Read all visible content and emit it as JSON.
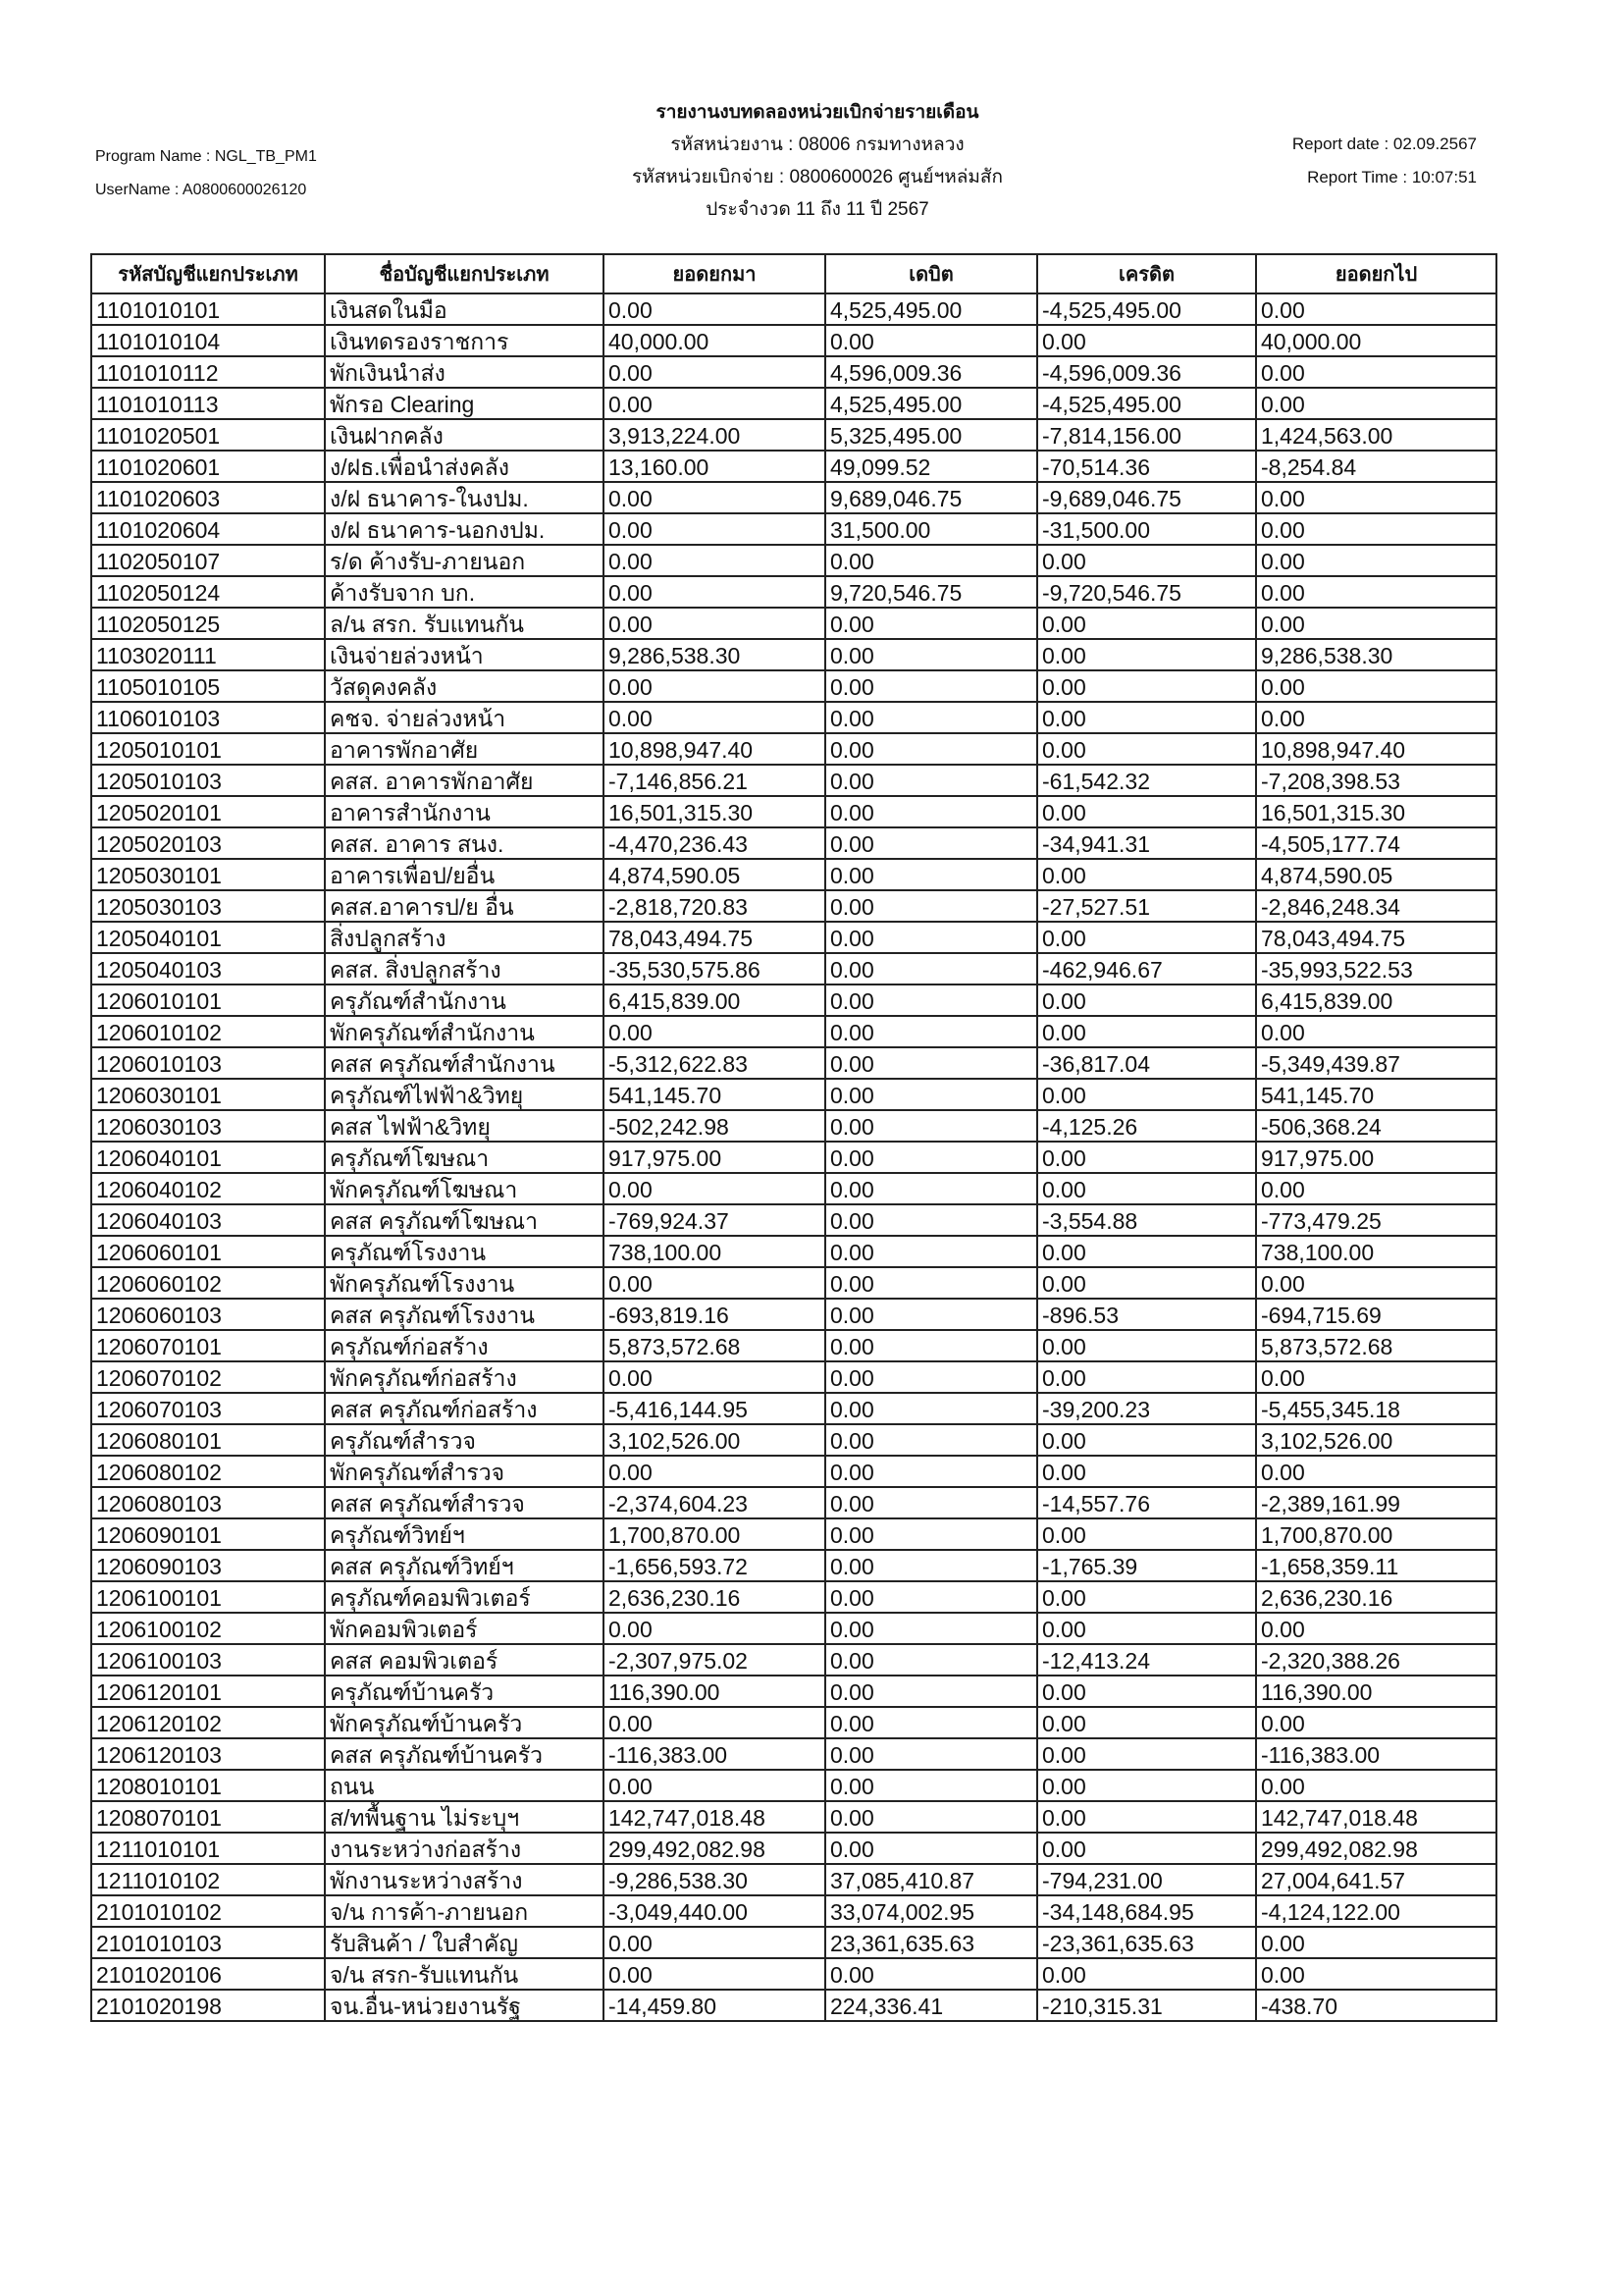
{
  "header": {
    "program_name": "Program Name : NGL_TB_PM1",
    "user_name": "UserName : A0800600026120",
    "title": "รายงานงบทดลองหน่วยเบิกจ่ายรายเดือน",
    "agency": "รหัสหน่วยงาน : 08006 กรมทางหลวง",
    "disbursing_unit": "รหัสหน่วยเบิกจ่าย : 0800600026 ศูนย์ฯหล่มสัก",
    "period": "ประจำงวด 11 ถึง 11 ปี 2567",
    "report_date": "Report date : 02.09.2567",
    "report_time": "Report Time : 10:07:51"
  },
  "table": {
    "columns": [
      "รหัสบัญชีแยกประเภท",
      "ชื่อบัญชีแยกประเภท",
      "ยอดยกมา",
      "เดบิต",
      "เครดิต",
      "ยอดยกไป"
    ],
    "rows": [
      [
        "1101010101",
        "เงินสดในมือ",
        "0.00",
        "4,525,495.00",
        "-4,525,495.00",
        "0.00"
      ],
      [
        "1101010104",
        "เงินทดรองราชการ",
        "40,000.00",
        "0.00",
        "0.00",
        "40,000.00"
      ],
      [
        "1101010112",
        "พักเงินนำส่ง",
        "0.00",
        "4,596,009.36",
        "-4,596,009.36",
        "0.00"
      ],
      [
        "1101010113",
        "พักรอ Clearing",
        "0.00",
        "4,525,495.00",
        "-4,525,495.00",
        "0.00"
      ],
      [
        "1101020501",
        "เงินฝากคลัง",
        "3,913,224.00",
        "5,325,495.00",
        "-7,814,156.00",
        "1,424,563.00"
      ],
      [
        "1101020601",
        "ง/ฝธ.เพื่อนำส่งคลัง",
        "13,160.00",
        "49,099.52",
        "-70,514.36",
        "-8,254.84"
      ],
      [
        "1101020603",
        "ง/ฝ ธนาคาร-ในงปม.",
        "0.00",
        "9,689,046.75",
        "-9,689,046.75",
        "0.00"
      ],
      [
        "1101020604",
        "ง/ฝ ธนาคาร-นอกงปม.",
        "0.00",
        "31,500.00",
        "-31,500.00",
        "0.00"
      ],
      [
        "1102050107",
        "ร/ด ค้างรับ-ภายนอก",
        "0.00",
        "0.00",
        "0.00",
        "0.00"
      ],
      [
        "1102050124",
        "ค้างรับจาก บก.",
        "0.00",
        "9,720,546.75",
        "-9,720,546.75",
        "0.00"
      ],
      [
        "1102050125",
        "ล/น สรก. รับแทนกัน",
        "0.00",
        "0.00",
        "0.00",
        "0.00"
      ],
      [
        "1103020111",
        "เงินจ่ายล่วงหน้า",
        "9,286,538.30",
        "0.00",
        "0.00",
        "9,286,538.30"
      ],
      [
        "1105010105",
        "วัสดุคงคลัง",
        "0.00",
        "0.00",
        "0.00",
        "0.00"
      ],
      [
        "1106010103",
        "คชจ. จ่ายล่วงหน้า",
        "0.00",
        "0.00",
        "0.00",
        "0.00"
      ],
      [
        "1205010101",
        "อาคารพักอาศัย",
        "10,898,947.40",
        "0.00",
        "0.00",
        "10,898,947.40"
      ],
      [
        "1205010103",
        "คสส. อาคารพักอาศัย",
        "-7,146,856.21",
        "0.00",
        "-61,542.32",
        "-7,208,398.53"
      ],
      [
        "1205020101",
        "อาคารสำนักงาน",
        "16,501,315.30",
        "0.00",
        "0.00",
        "16,501,315.30"
      ],
      [
        "1205020103",
        "คสส. อาคาร สนง.",
        "-4,470,236.43",
        "0.00",
        "-34,941.31",
        "-4,505,177.74"
      ],
      [
        "1205030101",
        "อาคารเพื่อป/ยอื่น",
        "4,874,590.05",
        "0.00",
        "0.00",
        "4,874,590.05"
      ],
      [
        "1205030103",
        "คสส.อาคารป/ย อื่น",
        "-2,818,720.83",
        "0.00",
        "-27,527.51",
        "-2,846,248.34"
      ],
      [
        "1205040101",
        "สิ่งปลูกสร้าง",
        "78,043,494.75",
        "0.00",
        "0.00",
        "78,043,494.75"
      ],
      [
        "1205040103",
        "คสส. สิ่งปลูกสร้าง",
        "-35,530,575.86",
        "0.00",
        "-462,946.67",
        "-35,993,522.53"
      ],
      [
        "1206010101",
        "ครุภัณฑ์สำนักงาน",
        "6,415,839.00",
        "0.00",
        "0.00",
        "6,415,839.00"
      ],
      [
        "1206010102",
        "พักครุภัณฑ์สำนักงาน",
        "0.00",
        "0.00",
        "0.00",
        "0.00"
      ],
      [
        "1206010103",
        "คสส ครุภัณฑ์สำนักงาน",
        "-5,312,622.83",
        "0.00",
        "-36,817.04",
        "-5,349,439.87"
      ],
      [
        "1206030101",
        "ครุภัณฑ์ไฟฟ้า&วิทยุ",
        "541,145.70",
        "0.00",
        "0.00",
        "541,145.70"
      ],
      [
        "1206030103",
        "คสส ไฟฟ้า&วิทยุ",
        "-502,242.98",
        "0.00",
        "-4,125.26",
        "-506,368.24"
      ],
      [
        "1206040101",
        "ครุภัณฑ์โฆษณา",
        "917,975.00",
        "0.00",
        "0.00",
        "917,975.00"
      ],
      [
        "1206040102",
        "พักครุภัณฑ์โฆษณา",
        "0.00",
        "0.00",
        "0.00",
        "0.00"
      ],
      [
        "1206040103",
        "คสส ครุภัณฑ์โฆษณา",
        "-769,924.37",
        "0.00",
        "-3,554.88",
        "-773,479.25"
      ],
      [
        "1206060101",
        "ครุภัณฑ์โรงงาน",
        "738,100.00",
        "0.00",
        "0.00",
        "738,100.00"
      ],
      [
        "1206060102",
        "พักครุภัณฑ์โรงงาน",
        "0.00",
        "0.00",
        "0.00",
        "0.00"
      ],
      [
        "1206060103",
        "คสส ครุภัณฑ์โรงงาน",
        "-693,819.16",
        "0.00",
        "-896.53",
        "-694,715.69"
      ],
      [
        "1206070101",
        "ครุภัณฑ์ก่อสร้าง",
        "5,873,572.68",
        "0.00",
        "0.00",
        "5,873,572.68"
      ],
      [
        "1206070102",
        "พักครุภัณฑ์ก่อสร้าง",
        "0.00",
        "0.00",
        "0.00",
        "0.00"
      ],
      [
        "1206070103",
        "คสส ครุภัณฑ์ก่อสร้าง",
        "-5,416,144.95",
        "0.00",
        "-39,200.23",
        "-5,455,345.18"
      ],
      [
        "1206080101",
        "ครุภัณฑ์สำรวจ",
        "3,102,526.00",
        "0.00",
        "0.00",
        "3,102,526.00"
      ],
      [
        "1206080102",
        "พักครุภัณฑ์สำรวจ",
        "0.00",
        "0.00",
        "0.00",
        "0.00"
      ],
      [
        "1206080103",
        "คสส ครุภัณฑ์สำรวจ",
        "-2,374,604.23",
        "0.00",
        "-14,557.76",
        "-2,389,161.99"
      ],
      [
        "1206090101",
        "ครุภัณฑ์วิทย์ฯ",
        "1,700,870.00",
        "0.00",
        "0.00",
        "1,700,870.00"
      ],
      [
        "1206090103",
        "คสส ครุภัณฑ์วิทย์ฯ",
        "-1,656,593.72",
        "0.00",
        "-1,765.39",
        "-1,658,359.11"
      ],
      [
        "1206100101",
        "ครุภัณฑ์คอมพิวเตอร์",
        "2,636,230.16",
        "0.00",
        "0.00",
        "2,636,230.16"
      ],
      [
        "1206100102",
        "พักคอมพิวเตอร์",
        "0.00",
        "0.00",
        "0.00",
        "0.00"
      ],
      [
        "1206100103",
        "คสส คอมพิวเตอร์",
        "-2,307,975.02",
        "0.00",
        "-12,413.24",
        "-2,320,388.26"
      ],
      [
        "1206120101",
        "ครุภัณฑ์บ้านครัว",
        "116,390.00",
        "0.00",
        "0.00",
        "116,390.00"
      ],
      [
        "1206120102",
        "พักครุภัณฑ์บ้านครัว",
        "0.00",
        "0.00",
        "0.00",
        "0.00"
      ],
      [
        "1206120103",
        "คสส ครุภัณฑ์บ้านครัว",
        "-116,383.00",
        "0.00",
        "0.00",
        "-116,383.00"
      ],
      [
        "1208010101",
        "ถนน",
        "0.00",
        "0.00",
        "0.00",
        "0.00"
      ],
      [
        "1208070101",
        "ส/ทพื้นฐาน ไม่ระบุฯ",
        "142,747,018.48",
        "0.00",
        "0.00",
        "142,747,018.48"
      ],
      [
        "1211010101",
        "งานระหว่างก่อสร้าง",
        "299,492,082.98",
        "0.00",
        "0.00",
        "299,492,082.98"
      ],
      [
        "1211010102",
        "พักงานระหว่างสร้าง",
        "-9,286,538.30",
        "37,085,410.87",
        "-794,231.00",
        "27,004,641.57"
      ],
      [
        "2101010102",
        "จ/น การค้า-ภายนอก",
        "-3,049,440.00",
        "33,074,002.95",
        "-34,148,684.95",
        "-4,124,122.00"
      ],
      [
        "2101010103",
        "รับสินค้า / ใบสำคัญ",
        "0.00",
        "23,361,635.63",
        "-23,361,635.63",
        "0.00"
      ],
      [
        "2101020106",
        "จ/น สรก-รับแทนกัน",
        "0.00",
        "0.00",
        "0.00",
        "0.00"
      ],
      [
        "2101020198",
        "จน.อื่น-หน่วยงานรัฐ",
        "-14,459.80",
        "224,336.41",
        "-210,315.31",
        "-438.70"
      ]
    ]
  }
}
